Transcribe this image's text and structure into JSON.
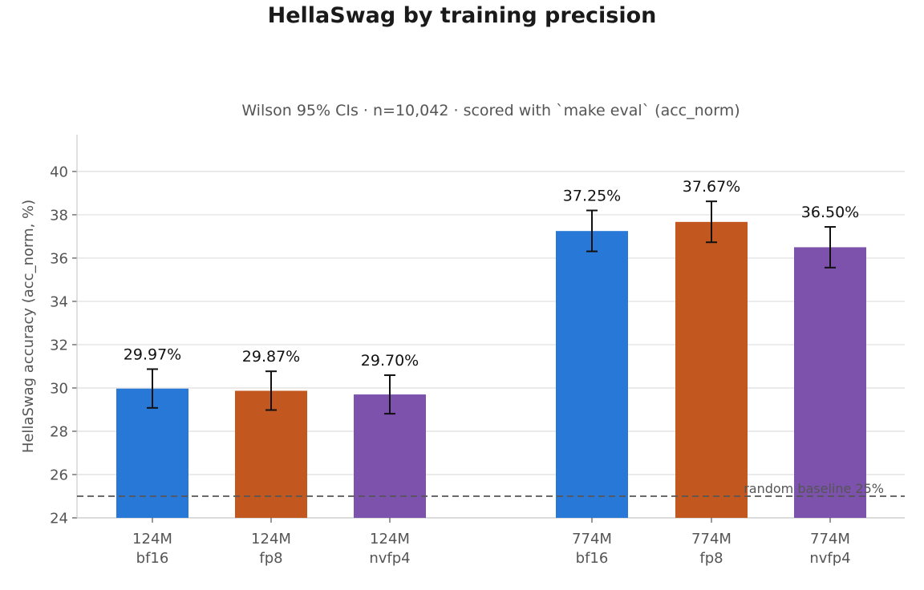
{
  "chart_data": {
    "type": "bar",
    "title": "HellaSwag by training precision",
    "subtitle": "Wilson 95% CIs · n=10,042 · scored with `make eval` (acc_norm)",
    "ylabel": "HellaSwag accuracy (acc_norm, %)",
    "xlabel": "",
    "ylim": [
      24,
      41.7
    ],
    "yticks": [
      "24",
      "26",
      "28",
      "30",
      "32",
      "34",
      "36",
      "38",
      "40"
    ],
    "grid": "horizontal",
    "bars": [
      {
        "size": "124M",
        "precision": "bf16",
        "value": 29.97,
        "ci_low": 29.08,
        "ci_high": 30.87,
        "label": "29.97%",
        "color": "#2878d8"
      },
      {
        "size": "124M",
        "precision": "fp8",
        "value": 29.87,
        "ci_low": 28.98,
        "ci_high": 30.77,
        "label": "29.87%",
        "color": "#c2581f"
      },
      {
        "size": "124M",
        "precision": "nvfp4",
        "value": 29.7,
        "ci_low": 28.81,
        "ci_high": 30.59,
        "label": "29.70%",
        "color": "#7c52ad"
      },
      {
        "size": "774M",
        "precision": "bf16",
        "value": 37.25,
        "ci_low": 36.31,
        "ci_high": 38.2,
        "label": "37.25%",
        "color": "#2878d8"
      },
      {
        "size": "774M",
        "precision": "fp8",
        "value": 37.67,
        "ci_low": 36.73,
        "ci_high": 38.62,
        "label": "37.67%",
        "color": "#c2581f"
      },
      {
        "size": "774M",
        "precision": "nvfp4",
        "value": 36.5,
        "ci_low": 35.56,
        "ci_high": 37.44,
        "label": "36.50%",
        "color": "#7c52ad"
      }
    ],
    "baseline": {
      "value": 25,
      "label": "random baseline 25%"
    }
  }
}
